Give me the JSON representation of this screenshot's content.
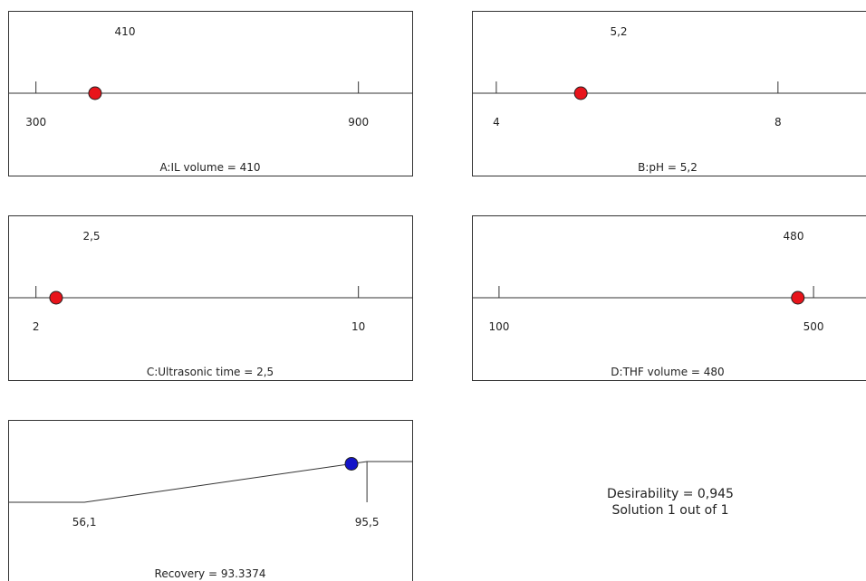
{
  "chart_data": [
    {
      "type": "ramp",
      "factor_label": "A:IL volume = 410",
      "value": 410,
      "value_label": "410",
      "ticks": [
        {
          "value": 300,
          "label": "300"
        },
        {
          "value": 900,
          "label": "900"
        }
      ],
      "xlim": [
        250,
        1000
      ],
      "marker_color": "#e8141b"
    },
    {
      "type": "ramp",
      "factor_label": "B:pH = 5,2",
      "value": 5.2,
      "value_label": "5,2",
      "ticks": [
        {
          "value": 4,
          "label": "4"
        },
        {
          "value": 8,
          "label": "8"
        }
      ],
      "xlim": [
        3.667,
        9.25
      ],
      "marker_color": "#e8141b"
    },
    {
      "type": "ramp",
      "factor_label": "C:Ultrasonic time = 2,5",
      "value": 2.5,
      "value_label": "2,5",
      "ticks": [
        {
          "value": 2,
          "label": "2"
        },
        {
          "value": 10,
          "label": "10"
        }
      ],
      "xlim": [
        1.333,
        11.333
      ],
      "marker_color": "#e8141b"
    },
    {
      "type": "ramp",
      "factor_label": "D:THF volume = 480",
      "value": 480,
      "value_label": "480",
      "ticks": [
        {
          "value": 100,
          "label": "100"
        },
        {
          "value": 500,
          "label": "500"
        }
      ],
      "xlim": [
        66.7,
        566.7
      ],
      "marker_color": "#e8141b"
    },
    {
      "type": "ramp",
      "response_label": "Recovery = 93.3374",
      "value": 93.3374,
      "low": 56.1,
      "high": 95.5,
      "ticks": [
        {
          "value": 56.1,
          "label": "56,1"
        },
        {
          "value": 95.5,
          "label": "95,5"
        }
      ],
      "xlim": [
        45.6,
        101.8
      ],
      "marker_color": "#1414c8"
    }
  ],
  "summary": {
    "desirability": "Desirability = 0,945",
    "solution": "Solution 1 out of 1"
  }
}
